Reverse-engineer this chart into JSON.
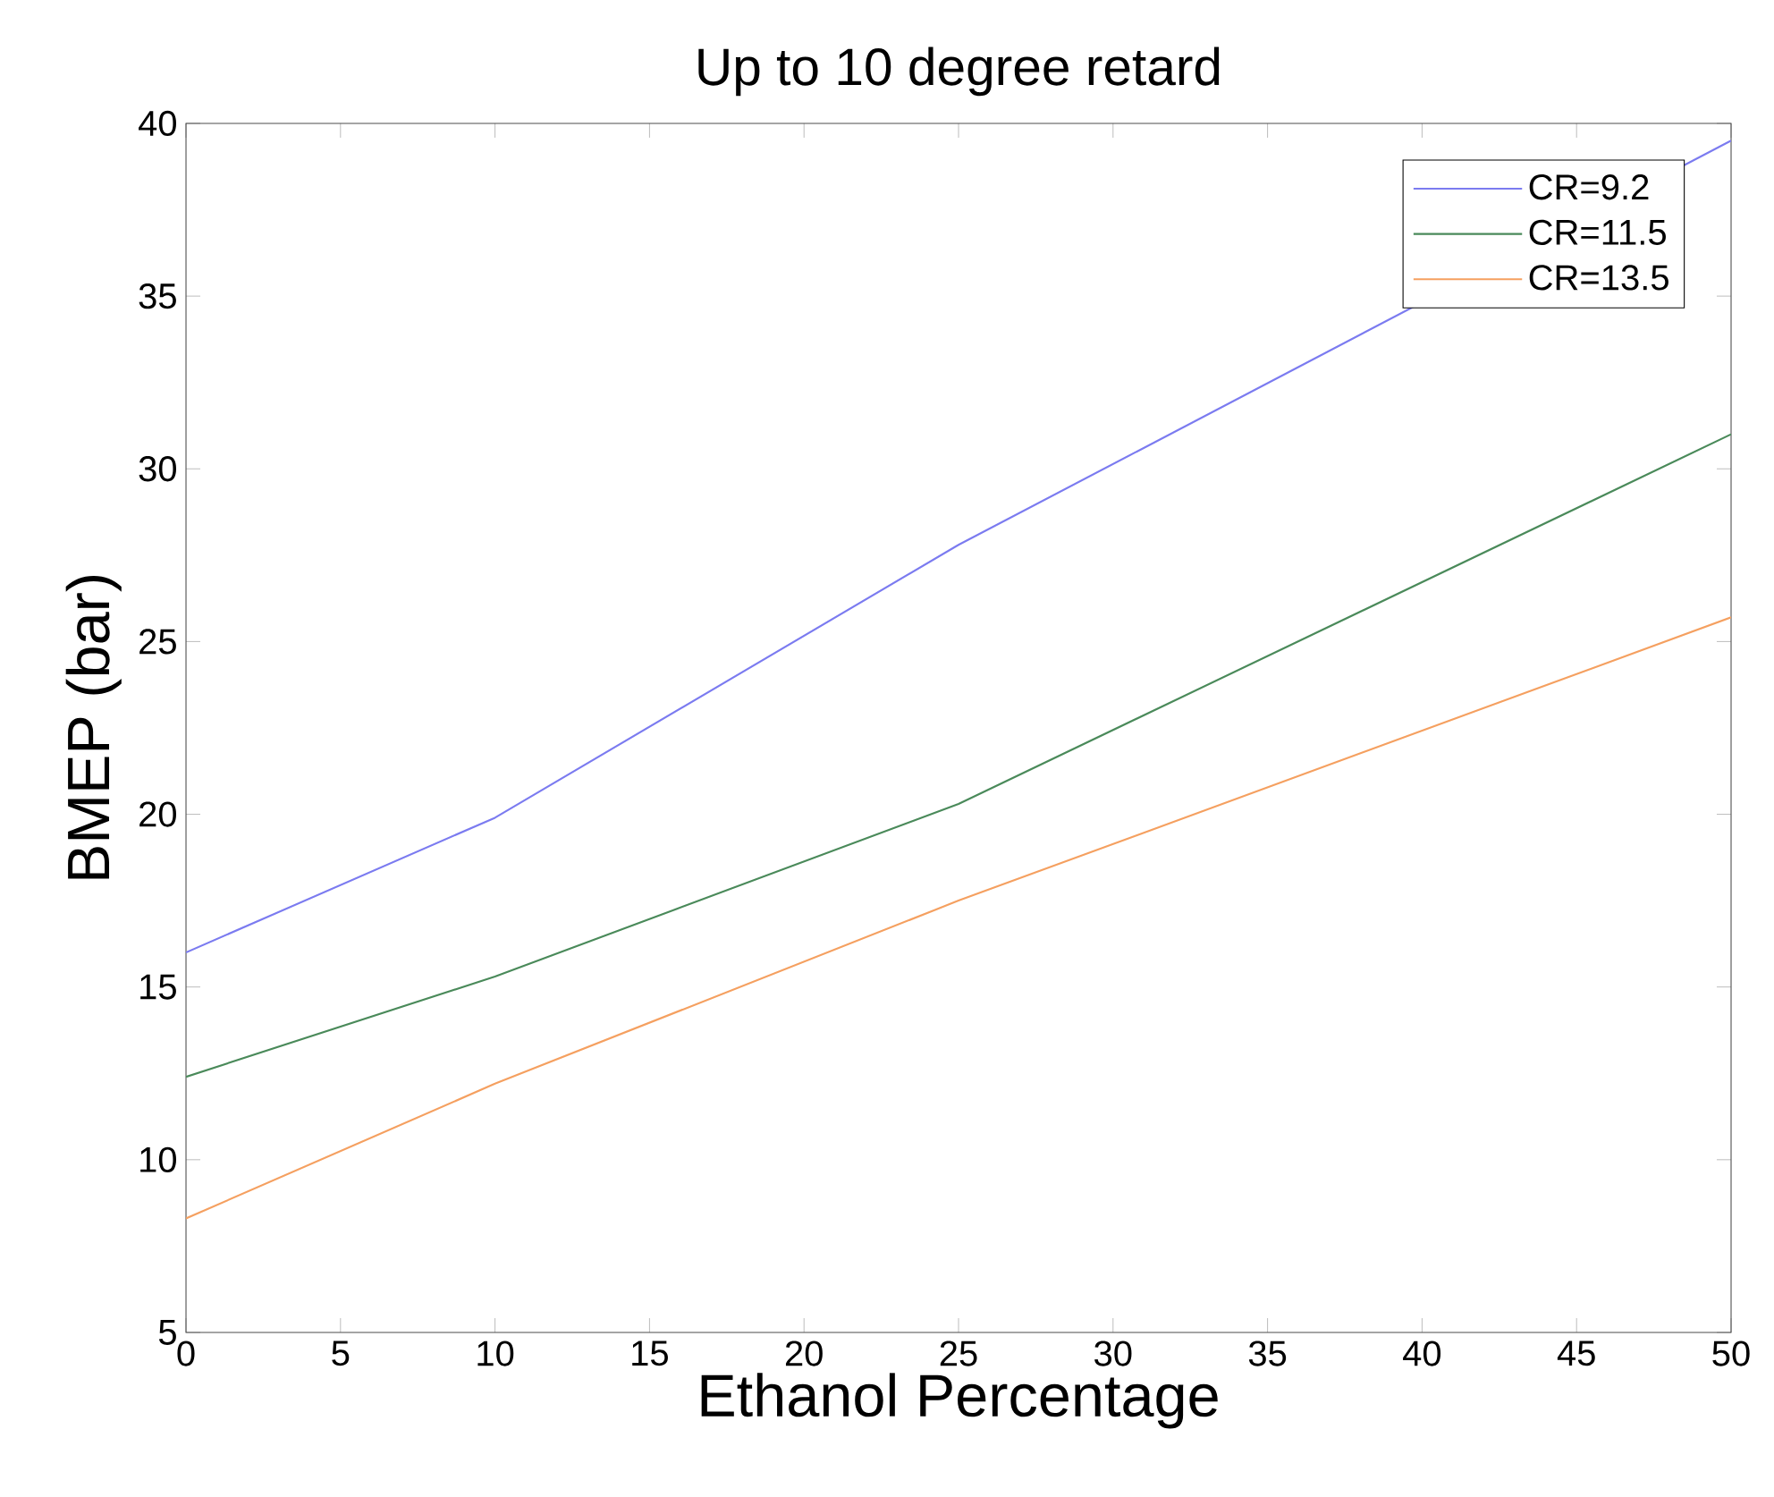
{
  "chart_data": {
    "type": "line",
    "title": "Up to 10 degree retard",
    "xlabel": "Ethanol Percentage",
    "ylabel": "BMEP (bar)",
    "x": [
      0,
      10,
      25,
      50
    ],
    "series": [
      {
        "name": "CR=9.2",
        "color": "#7b7bf0",
        "values": [
          16.0,
          19.9,
          27.8,
          39.5
        ]
      },
      {
        "name": "CR=11.5",
        "color": "#4a8a5a",
        "values": [
          12.4,
          15.3,
          20.3,
          31.0
        ]
      },
      {
        "name": "CR=13.5",
        "color": "#f5a060",
        "values": [
          8.3,
          12.2,
          17.5,
          25.7
        ]
      }
    ],
    "xlim": [
      0,
      50
    ],
    "ylim": [
      5,
      40
    ],
    "xticks": [
      0,
      5,
      10,
      15,
      20,
      25,
      30,
      35,
      40,
      45,
      50
    ],
    "yticks": [
      5,
      10,
      15,
      20,
      25,
      30,
      35,
      40
    ],
    "grid": false,
    "legend": "top right",
    "marker": "none",
    "line_style": "solid"
  }
}
